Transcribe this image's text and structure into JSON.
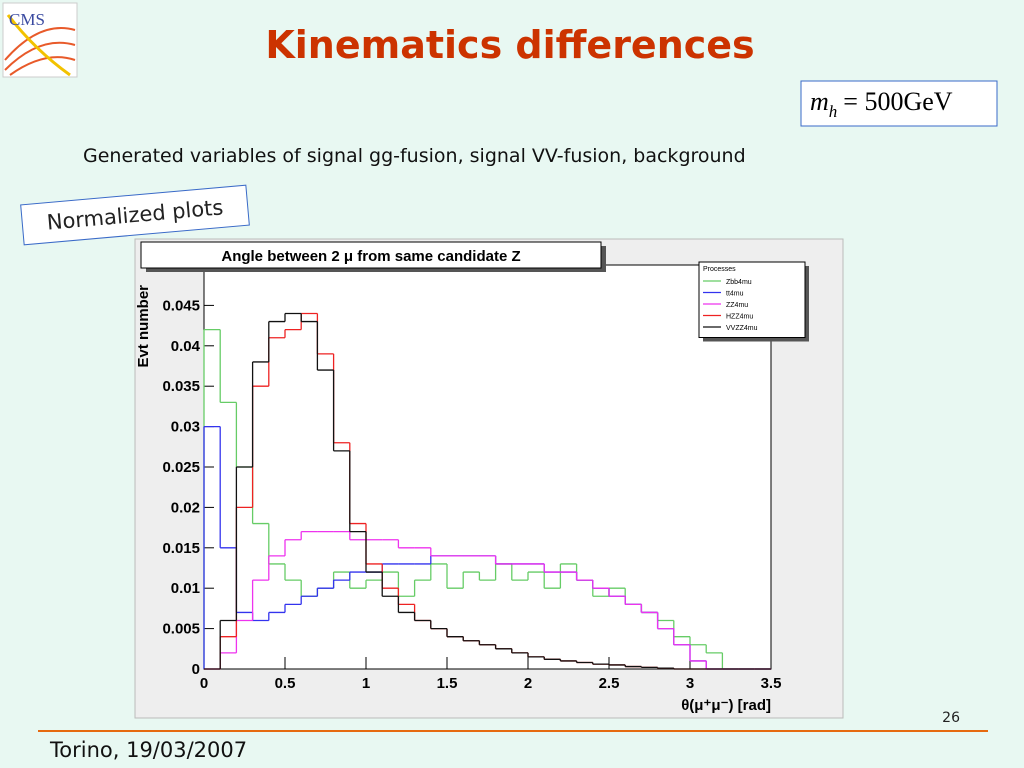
{
  "slide": {
    "logo": "CMS",
    "title": "Kinematics differences",
    "formula": {
      "base": "m",
      "subscript": "h",
      "rest": "= 500GeV"
    },
    "subtitle": "Generated variables of  signal gg-fusion, signal VV-fusion, background",
    "badge": "Normalized plots",
    "page_number": "26",
    "footer": "Torino, 19/03/2007"
  },
  "chart_data": {
    "type": "histogram",
    "title": "Angle between 2 μ from same candidate Z",
    "x_label": "θ(μ⁺μ⁻) [rad]",
    "y_label": "Evt number",
    "legend_title": "Processes",
    "legend": "upper right",
    "xlim": [
      0,
      3.5
    ],
    "ylim": [
      0,
      0.05
    ],
    "xticks": [
      0,
      0.5,
      1,
      1.5,
      2,
      2.5,
      3,
      3.5
    ],
    "yticks": [
      0,
      0.005,
      0.01,
      0.015,
      0.02,
      0.025,
      0.03,
      0.035,
      0.04,
      0.045
    ],
    "bins": [
      0,
      0.1,
      0.2,
      0.3,
      0.4,
      0.5,
      0.6,
      0.7,
      0.8,
      0.9,
      1,
      1.1,
      1.2,
      1.3,
      1.4,
      1.5,
      1.6,
      1.7,
      1.8,
      1.9,
      2,
      2.1,
      2.2,
      2.3,
      2.4,
      2.5,
      2.6,
      2.7,
      2.8,
      2.9,
      3,
      3.1,
      3.2,
      3.3,
      3.4,
      3.5
    ],
    "series": [
      {
        "name": "Zbb4mu",
        "color": "#66cc66",
        "values": [
          0.042,
          0.033,
          0.025,
          0.018,
          0.013,
          0.011,
          0.009,
          0.01,
          0.012,
          0.01,
          0.011,
          0.012,
          0.009,
          0.011,
          0.013,
          0.01,
          0.012,
          0.011,
          0.013,
          0.011,
          0.012,
          0.01,
          0.013,
          0.011,
          0.009,
          0.01,
          0.008,
          0.007,
          0.006,
          0.004,
          0.003,
          0.002,
          0,
          0,
          0
        ]
      },
      {
        "name": "tt4mu",
        "color": "#3333ee",
        "values": [
          0.03,
          0.015,
          0.007,
          0.006,
          0.007,
          0.008,
          0.009,
          0.01,
          0.011,
          0.012,
          0.012,
          0.013,
          0.013,
          0.013,
          0.014,
          0.014,
          0.014,
          0.014,
          0.013,
          0.013,
          0.013,
          0.012,
          0.012,
          0.011,
          0.01,
          0.009,
          0.008,
          0.007,
          0.005,
          0.003,
          0.001,
          0,
          0,
          0,
          0
        ]
      },
      {
        "name": "ZZ4mu",
        "color": "#ee33ee",
        "values": [
          0,
          0.002,
          0.006,
          0.011,
          0.014,
          0.016,
          0.017,
          0.017,
          0.017,
          0.016,
          0.016,
          0.016,
          0.015,
          0.015,
          0.014,
          0.014,
          0.014,
          0.014,
          0.013,
          0.013,
          0.013,
          0.012,
          0.012,
          0.011,
          0.01,
          0.009,
          0.008,
          0.007,
          0.005,
          0.003,
          0.001,
          0,
          0,
          0,
          0
        ]
      },
      {
        "name": "HZZ4mu",
        "color": "#ee2222",
        "values": [
          0,
          0.004,
          0.02,
          0.035,
          0.041,
          0.042,
          0.044,
          0.039,
          0.028,
          0.018,
          0.013,
          0.01,
          0.008,
          0.006,
          0.005,
          0.004,
          0.0035,
          0.003,
          0.0025,
          0.002,
          0.0015,
          0.0012,
          0.001,
          0.0008,
          0.0006,
          0.0005,
          0.0003,
          0.0002,
          0.0001,
          0,
          0,
          0,
          0,
          0,
          0
        ]
      },
      {
        "name": "VVZZ4mu",
        "color": "#111111",
        "values": [
          0,
          0.006,
          0.025,
          0.038,
          0.043,
          0.044,
          0.043,
          0.037,
          0.027,
          0.017,
          0.012,
          0.009,
          0.007,
          0.006,
          0.005,
          0.004,
          0.0035,
          0.003,
          0.0025,
          0.002,
          0.0015,
          0.0012,
          0.001,
          0.0008,
          0.0006,
          0.0005,
          0.0003,
          0.0002,
          0.0001,
          0,
          0,
          0,
          0,
          0,
          0
        ]
      }
    ]
  }
}
